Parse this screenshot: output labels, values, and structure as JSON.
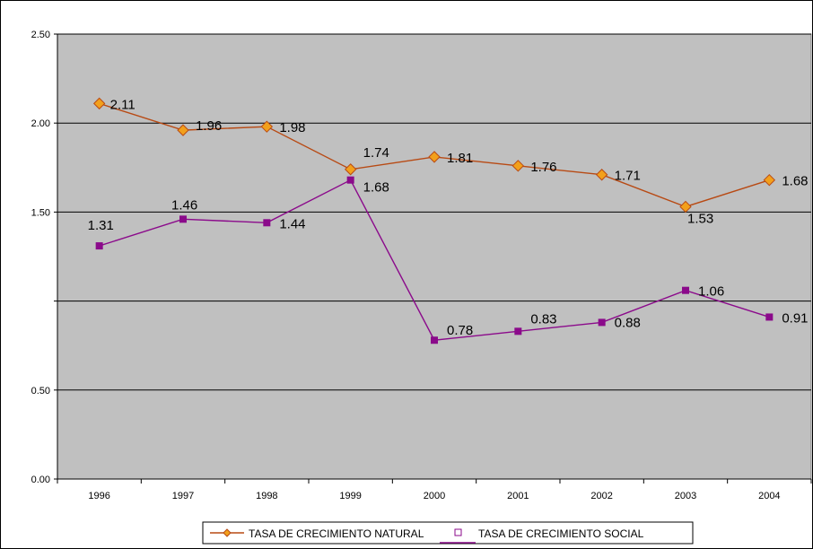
{
  "chart_data": {
    "type": "line",
    "categories": [
      "1996",
      "1997",
      "1998",
      "1999",
      "2000",
      "2001",
      "2002",
      "2003",
      "2004"
    ],
    "series": [
      {
        "name": "TASA  DE CRECIMIENTO NATURAL",
        "values": [
          2.11,
          1.96,
          1.98,
          1.74,
          1.81,
          1.76,
          1.71,
          1.53,
          1.68
        ],
        "labels": [
          "2.11",
          "1.96",
          "1.98",
          "1.74",
          "1.81",
          "1.76",
          "1.71",
          "1.53",
          "1.68"
        ],
        "color": "#b84a14",
        "marker": "diamond",
        "marker_fill": "#f2a01c"
      },
      {
        "name": "TASA  DE CRECIMIENTO SOCIAL",
        "values": [
          1.31,
          1.46,
          1.44,
          1.68,
          0.78,
          0.83,
          0.88,
          1.06,
          0.91
        ],
        "labels": [
          "1.31",
          "1.46",
          "1.44",
          "1.68",
          "0.78",
          "0.83",
          "0.88",
          "1.06",
          "0.91"
        ],
        "color": "#8b0a8b",
        "marker": "square",
        "marker_fill": "#8b0a8b"
      }
    ],
    "y_ticks": [
      "0.00",
      "0.50",
      "",
      "1.50",
      "2.00",
      "2.50"
    ],
    "ylim": [
      0,
      2.5
    ],
    "grid": true,
    "plot_background": "#c0c0c0",
    "legend_position": "bottom"
  }
}
